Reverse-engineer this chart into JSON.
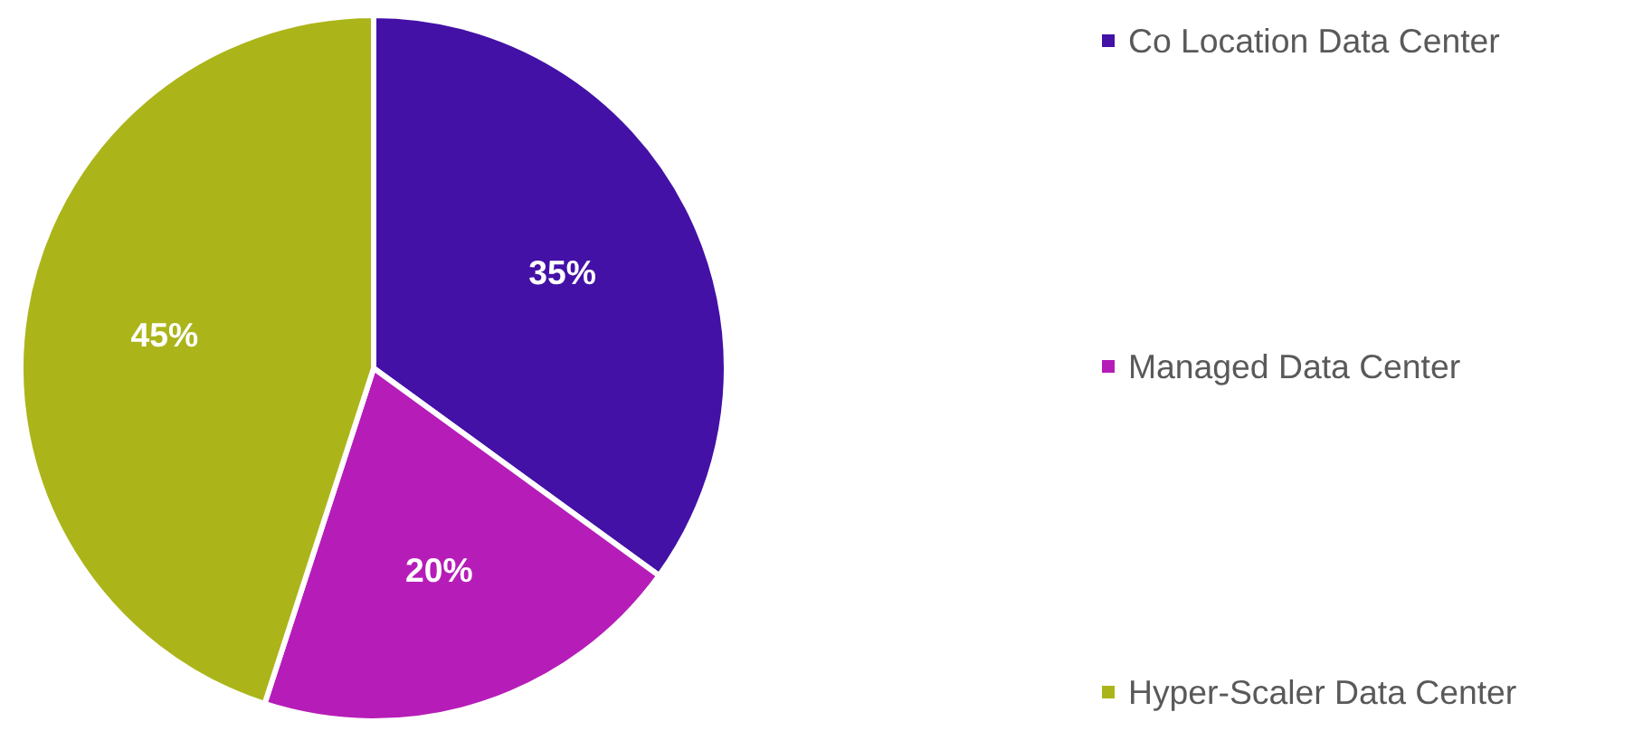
{
  "chart_data": {
    "type": "pie",
    "categories": [
      "Co Location Data Center",
      "Managed Data Center",
      "Hyper-Scaler Data Center"
    ],
    "values": [
      35,
      20,
      45
    ],
    "colors": [
      "#4311a6",
      "#b61db8",
      "#abb51a"
    ],
    "value_labels": [
      "35%",
      "20%",
      "45%"
    ],
    "legend": "right"
  }
}
